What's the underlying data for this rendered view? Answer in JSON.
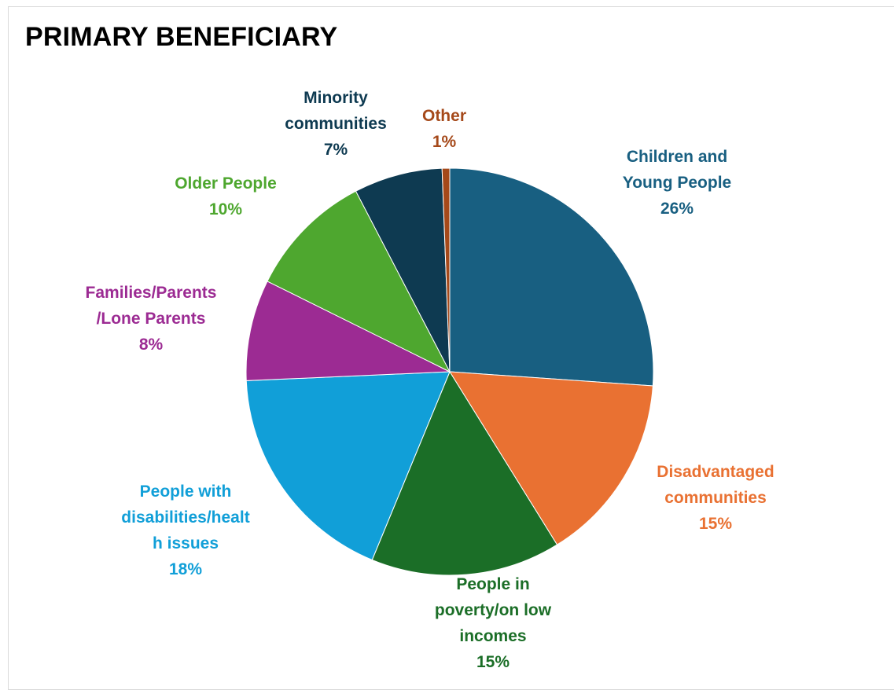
{
  "chart_data": {
    "type": "pie",
    "title": "PRIMARY BENEFICIARY",
    "slices": [
      {
        "label_lines": [
          "Children and",
          "Young People"
        ],
        "percent_label": "26%",
        "value": 26,
        "color": "#185f81"
      },
      {
        "label_lines": [
          "Disadvantaged",
          "communities"
        ],
        "percent_label": "15%",
        "value": 15,
        "color": "#e97132"
      },
      {
        "label_lines": [
          "People in",
          "poverty/on low",
          "incomes"
        ],
        "percent_label": "15%",
        "value": 15,
        "color": "#1b6e27"
      },
      {
        "label_lines": [
          "People with",
          "disabilities/healt",
          "h issues"
        ],
        "percent_label": "18%",
        "value": 18,
        "color": "#119fd8"
      },
      {
        "label_lines": [
          "Families/Parents",
          "/Lone Parents"
        ],
        "percent_label": "8%",
        "value": 8,
        "color": "#9c2b93"
      },
      {
        "label_lines": [
          "Older People"
        ],
        "percent_label": "10%",
        "value": 10,
        "color": "#4ea72f"
      },
      {
        "label_lines": [
          "Minority",
          "communities"
        ],
        "percent_label": "7%",
        "value": 7,
        "color": "#0e3a51"
      },
      {
        "label_lines": [
          "Other"
        ],
        "percent_label": "1%",
        "value": 0.6,
        "color": "#a5491a"
      }
    ],
    "label_colors": [
      "#185f81",
      "#e97132",
      "#1b6e27",
      "#119fd8",
      "#9c2b93",
      "#4ea72f",
      "#0e3a51",
      "#a5491a"
    ],
    "legend": "none",
    "data_labels": "outside-end"
  }
}
